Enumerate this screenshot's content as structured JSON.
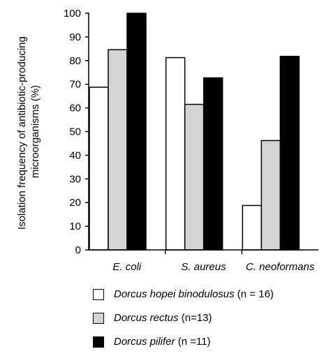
{
  "chart_data": {
    "type": "bar",
    "categories": [
      "E. coli",
      "S. aureus",
      "C. neoformans"
    ],
    "series": [
      {
        "name": "Dorcus hopei binodulosus",
        "name_suffix": " (n = 16)",
        "color": "#ffffff",
        "values": [
          68.75,
          81.25,
          18.75
        ]
      },
      {
        "name": "Dorcus rectus",
        "name_suffix": " (n=13)",
        "color": "#d4d4d4",
        "values": [
          84.6,
          61.5,
          46.2
        ]
      },
      {
        "name": "Dorcus pilifer",
        "name_suffix": " (n =11)",
        "color": "#000000",
        "values": [
          100,
          72.7,
          81.8
        ]
      }
    ],
    "ylabel_line1": "Isolation frequency of antibiotic-producing",
    "ylabel_line2": "microorganisms (%)",
    "ylim": [
      0,
      100
    ],
    "yticks": [
      "0",
      "10",
      "20",
      "30",
      "40",
      "50",
      "60",
      "70",
      "80",
      "90",
      "100"
    ],
    "legend_position": "bottom"
  }
}
